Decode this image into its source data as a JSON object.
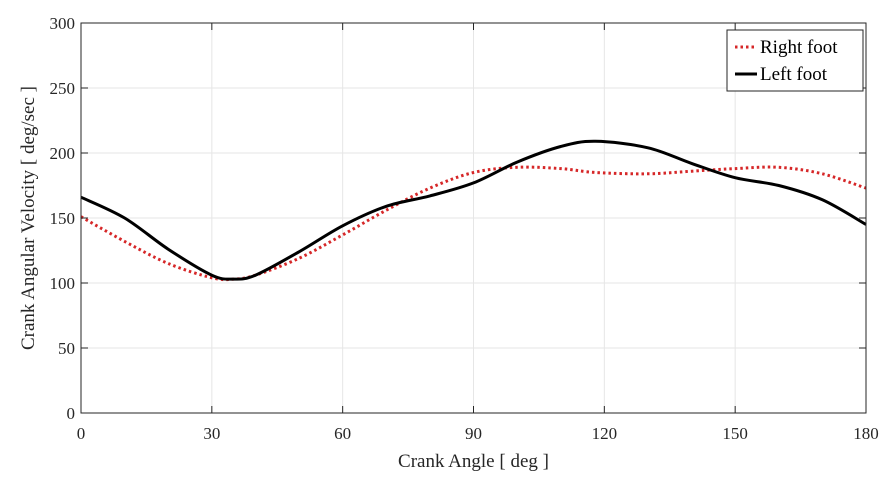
{
  "chart_data": {
    "type": "line",
    "title": "",
    "xlabel": "Crank Angle [ deg ]",
    "ylabel": "Crank Angular Velocity [ deg/sec ]",
    "xlim": [
      0,
      180
    ],
    "ylim": [
      0,
      300
    ],
    "xticks": [
      0,
      30,
      60,
      90,
      120,
      150,
      180
    ],
    "yticks": [
      0,
      50,
      100,
      150,
      200,
      250,
      300
    ],
    "grid": true,
    "legend_position": "top-right",
    "x": [
      0,
      10,
      20,
      30,
      35,
      40,
      50,
      60,
      70,
      80,
      90,
      100,
      110,
      118,
      130,
      140,
      150,
      160,
      170,
      180
    ],
    "series": [
      {
        "name": "Right foot",
        "color": "#d62728",
        "style": "dotted",
        "values": [
          151,
          132,
          115,
          104,
          103,
          106,
          119,
          137,
          156,
          173,
          185,
          189,
          188,
          185,
          184,
          186,
          188,
          189,
          184,
          173
        ]
      },
      {
        "name": "Left foot",
        "color": "#000000",
        "style": "solid",
        "values": [
          166,
          150,
          126,
          106,
          103,
          106,
          124,
          144,
          159,
          167,
          177,
          193,
          205,
          209,
          204,
          192,
          181,
          175,
          164,
          145
        ]
      }
    ]
  }
}
